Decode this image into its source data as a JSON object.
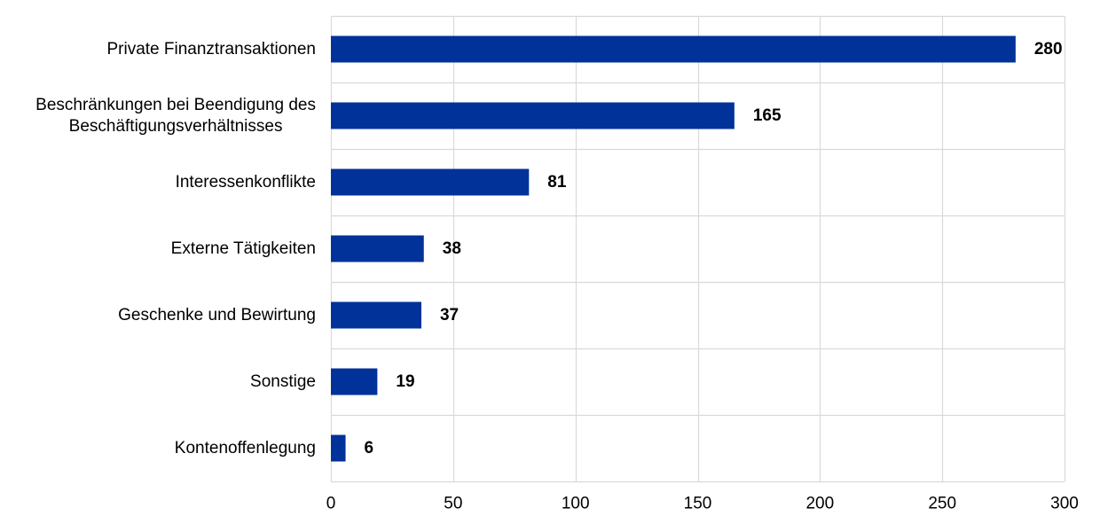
{
  "chart_data": {
    "type": "bar",
    "orientation": "horizontal",
    "categories": [
      [
        "Private Finanztransaktionen"
      ],
      [
        "Beschränkungen bei Beendigung des",
        "Beschäftigungsverhältnisses"
      ],
      [
        "Interessenkonflikte"
      ],
      [
        "Externe Tätigkeiten"
      ],
      [
        "Geschenke und Bewirtung"
      ],
      [
        "Sonstige"
      ],
      [
        "Kontenoffenlegung"
      ]
    ],
    "values": [
      280,
      165,
      81,
      38,
      37,
      19,
      6
    ],
    "data_labels": [
      "280",
      "165",
      "81",
      "38",
      "37",
      "19",
      "6"
    ],
    "title": "",
    "xlabel": "",
    "ylabel": "",
    "xlim": [
      0,
      300
    ],
    "xticks": [
      0,
      50,
      100,
      150,
      200,
      250,
      300
    ],
    "grid": true,
    "legend": "none",
    "bar_color": "#003299",
    "grid_color": "#d9d9d9"
  }
}
